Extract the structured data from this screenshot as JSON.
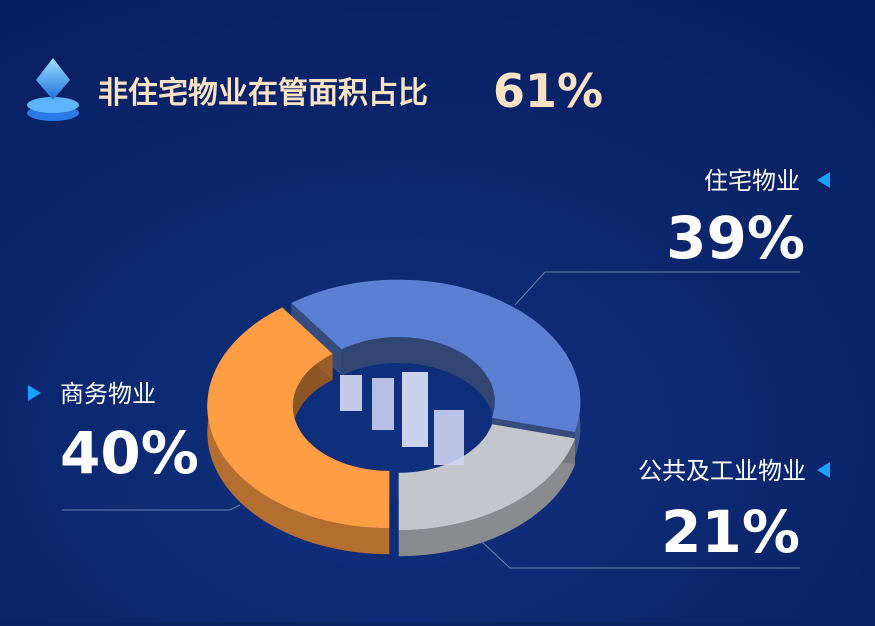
{
  "chart_data": {
    "type": "pie",
    "title": "非住宅物业在管面积占比",
    "subtitle": "61%",
    "categories": [
      "住宅物业",
      "公共及工业物业",
      "商务物业"
    ],
    "values": [
      39,
      21,
      40
    ],
    "value_labels": [
      "39%",
      "21%",
      "40%"
    ],
    "colors": [
      "#5b7fd2",
      "#c4c6cc",
      "#ff9d45"
    ]
  }
}
